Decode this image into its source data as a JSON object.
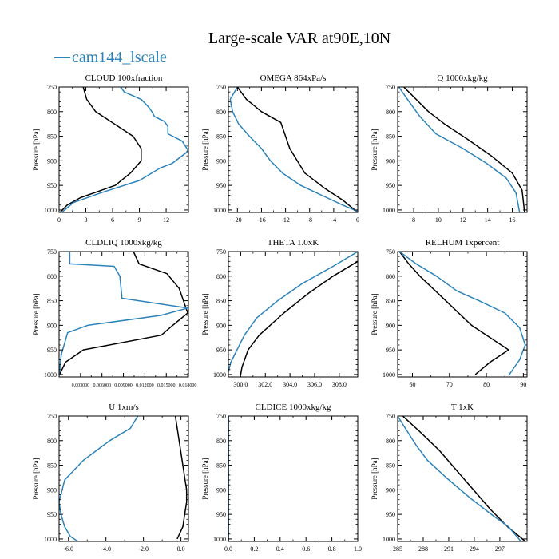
{
  "figure": {
    "title": "Large-scale VAR at90E,10N",
    "legend": {
      "label": "cam144_lscale",
      "color": "#2b83ba",
      "marker": "—"
    },
    "colors": {
      "black": "#000000",
      "blue": "#2b83ba"
    }
  },
  "chart_data": [
    {
      "type": "line",
      "title": "CLOUD 100xfraction",
      "ylabel": "Pressure [hPa]",
      "xlim": [
        0,
        14.5
      ],
      "ylim": [
        1005,
        750
      ],
      "xticks": [
        0,
        3,
        6,
        9,
        12
      ],
      "xtick_labels": [
        "0",
        "3",
        "6",
        "9",
        "12"
      ],
      "yticks": [
        750,
        800,
        850,
        900,
        950,
        1000
      ],
      "ytick_labels": [
        "750",
        "800",
        "850",
        "900",
        "950",
        "1000"
      ],
      "series": [
        {
          "name": "black",
          "color": "#000000",
          "x": [
            2.7,
            3.1,
            4.1,
            8.3,
            9.2,
            9.2,
            8.0,
            6.3,
            2.4,
            0.9,
            0.1
          ],
          "y": [
            750,
            775,
            800,
            850,
            875,
            900,
            925,
            950,
            975,
            990,
            1005
          ]
        },
        {
          "name": "cam144_lscale",
          "color": "#2b83ba",
          "x": [
            6.9,
            7.3,
            9.2,
            10.0,
            10.4,
            10.7,
            11.8,
            12.2,
            12.2,
            13.8,
            14.5,
            12.7,
            11.3,
            9.0,
            4.7,
            1.6,
            0.3
          ],
          "y": [
            750,
            760,
            775,
            790,
            800,
            810,
            820,
            830,
            845,
            860,
            880,
            905,
            915,
            940,
            965,
            985,
            1005
          ]
        }
      ]
    },
    {
      "type": "line",
      "title": "OMEGA 864xPa/s",
      "ylabel": "Pressure [hPa]",
      "xlim": [
        -21.5,
        0
      ],
      "ylim": [
        1005,
        750
      ],
      "xticks": [
        -20,
        -16,
        -12,
        -8,
        -4,
        0
      ],
      "xtick_labels": [
        "-20",
        "-16",
        "-12",
        "-8",
        "-4",
        "0"
      ],
      "yticks": [
        750,
        800,
        850,
        900,
        950,
        1000
      ],
      "ytick_labels": [
        "750",
        "800",
        "850",
        "900",
        "950",
        "1000"
      ],
      "series": [
        {
          "name": "black",
          "color": "#000000",
          "x": [
            -20.0,
            -18.5,
            -16.0,
            -12.8,
            -12.0,
            -11.3,
            -8.8,
            -5.6,
            -2.5,
            0.0
          ],
          "y": [
            750,
            775,
            800,
            822,
            850,
            875,
            925,
            955,
            980,
            1005
          ]
        },
        {
          "name": "cam144_lscale",
          "color": "#2b83ba",
          "x": [
            -20.0,
            -21.2,
            -20.8,
            -19.8,
            -18.0,
            -16.0,
            -14.5,
            -12.5,
            -9.5,
            -6.0,
            -2.5,
            0.0
          ],
          "y": [
            750,
            775,
            800,
            825,
            850,
            875,
            900,
            925,
            950,
            970,
            990,
            1003
          ]
        }
      ]
    },
    {
      "type": "line",
      "title": "Q 1000xkg/kg",
      "ylabel": "Pressure [hPa]",
      "xlim": [
        6.7,
        17.2
      ],
      "ylim": [
        1005,
        750
      ],
      "xticks": [
        8,
        10,
        12,
        14,
        16
      ],
      "xtick_labels": [
        "8",
        "10",
        "12",
        "14",
        "16"
      ],
      "yticks": [
        750,
        800,
        850,
        900,
        950,
        1000
      ],
      "ytick_labels": [
        "750",
        "800",
        "850",
        "900",
        "950",
        "1000"
      ],
      "series": [
        {
          "name": "black",
          "color": "#000000",
          "x": [
            7.2,
            8.2,
            9.2,
            10.5,
            12.3,
            14.3,
            16.0,
            16.8,
            17.0
          ],
          "y": [
            750,
            775,
            800,
            825,
            855,
            890,
            925,
            960,
            1005
          ]
        },
        {
          "name": "cam144_lscale",
          "color": "#2b83ba",
          "x": [
            6.8,
            7.5,
            8.5,
            9.8,
            12.0,
            13.9,
            15.5,
            16.3,
            16.6
          ],
          "y": [
            750,
            775,
            810,
            845,
            875,
            905,
            935,
            965,
            1005
          ]
        }
      ]
    },
    {
      "type": "line",
      "title": "CLDLIQ 1000xkg/kg",
      "ylabel": "Pressure [hPa]",
      "xlim": [
        0,
        0.0181
      ],
      "ylim": [
        1005,
        750
      ],
      "xticks": [
        0.003,
        0.006,
        0.009,
        0.012,
        0.015,
        0.018
      ],
      "xtick_labels": [
        "0.003000",
        "0.006000",
        "0.009000",
        "0.012000",
        "0.015000",
        "0.018000"
      ],
      "yticks": [
        750,
        800,
        850,
        900,
        950,
        1000
      ],
      "ytick_labels": [
        "750",
        "800",
        "850",
        "900",
        "950",
        "1000"
      ],
      "series": [
        {
          "name": "black",
          "color": "#000000",
          "x": [
            0.0104,
            0.0112,
            0.0151,
            0.0168,
            0.018,
            0.0159,
            0.0143,
            0.0034,
            0.0009,
            0.0
          ],
          "y": [
            750,
            775,
            795,
            825,
            875,
            900,
            920,
            950,
            975,
            1002
          ]
        },
        {
          "name": "cam144_lscale",
          "color": "#2b83ba",
          "x": [
            0.0015,
            0.0015,
            0.0077,
            0.0085,
            0.0088,
            0.018,
            0.0142,
            0.004,
            0.0012,
            0.0003,
            0.0
          ],
          "y": [
            750,
            775,
            780,
            800,
            845,
            865,
            880,
            900,
            915,
            960,
            1002
          ]
        }
      ]
    },
    {
      "type": "line",
      "title": "THETA 1.0xK",
      "ylabel": "Pressure [hPa]",
      "xlim": [
        299.0,
        309.5
      ],
      "ylim": [
        1005,
        750
      ],
      "xticks": [
        300,
        302,
        304,
        306,
        308
      ],
      "xtick_labels": [
        "300.0",
        "302.0",
        "304.0",
        "306.0",
        "308.0"
      ],
      "yticks": [
        750,
        800,
        850,
        900,
        950,
        1000
      ],
      "ytick_labels": [
        "750",
        "800",
        "850",
        "900",
        "950",
        "1000"
      ],
      "series": [
        {
          "name": "black",
          "color": "#000000",
          "x": [
            309.5,
            307.5,
            305.5,
            303.5,
            301.5,
            300.6,
            300.1,
            300.0
          ],
          "y": [
            770,
            800,
            835,
            875,
            920,
            950,
            985,
            1000
          ]
        },
        {
          "name": "cam144_lscale",
          "color": "#2b83ba",
          "x": [
            309.5,
            307.5,
            305.0,
            303.0,
            301.3,
            300.3,
            299.7,
            299.2,
            299.0
          ],
          "y": [
            750,
            780,
            815,
            850,
            885,
            920,
            950,
            975,
            995
          ]
        }
      ]
    },
    {
      "type": "line",
      "title": "RELHUM 1xpercent",
      "ylabel": "Pressure [hPa]",
      "xlim": [
        56,
        91
      ],
      "ylim": [
        1005,
        750
      ],
      "xticks": [
        60,
        70,
        80,
        90
      ],
      "xtick_labels": [
        "60",
        "70",
        "80",
        "90"
      ],
      "yticks": [
        750,
        800,
        850,
        900,
        950,
        1000
      ],
      "ytick_labels": [
        "750",
        "800",
        "850",
        "900",
        "950",
        "1000"
      ],
      "series": [
        {
          "name": "black",
          "color": "#000000",
          "x": [
            56.5,
            59.0,
            62.0,
            69.0,
            76.0,
            81.0,
            86.0,
            81.0,
            77.0
          ],
          "y": [
            750,
            775,
            800,
            850,
            900,
            925,
            950,
            975,
            1000
          ]
        },
        {
          "name": "cam144_lscale",
          "color": "#2b83ba",
          "x": [
            56.5,
            61.0,
            66.5,
            72.0,
            78.0,
            85.0,
            89.0,
            90.5,
            89.0,
            86.0
          ],
          "y": [
            750,
            775,
            800,
            830,
            850,
            875,
            905,
            940,
            970,
            1002
          ]
        }
      ]
    },
    {
      "type": "line",
      "title": "U 1xm/s",
      "ylabel": "Pressure [hPa]",
      "xlim": [
        -6.5,
        0.4
      ],
      "ylim": [
        1005,
        750
      ],
      "xticks": [
        -6.0,
        -4.0,
        -2.0,
        0.0
      ],
      "xtick_labels": [
        "-6.0",
        "-4.0",
        "-2.0",
        "0.0"
      ],
      "yticks": [
        750,
        800,
        850,
        900,
        950,
        1000
      ],
      "ytick_labels": [
        "750",
        "800",
        "850",
        "900",
        "950",
        "1000"
      ],
      "series": [
        {
          "name": "black",
          "color": "#000000",
          "x": [
            -0.3,
            -0.1,
            0.1,
            0.2,
            0.3,
            0.3,
            0.2,
            0.1,
            -0.2
          ],
          "y": [
            750,
            800,
            850,
            875,
            900,
            925,
            950,
            975,
            1000
          ]
        },
        {
          "name": "cam144_lscale",
          "color": "#2b83ba",
          "x": [
            -2.3,
            -2.7,
            -3.8,
            -5.2,
            -6.2,
            -6.5,
            -6.4,
            -6.2,
            -5.9,
            -5.5
          ],
          "y": [
            750,
            775,
            800,
            840,
            880,
            925,
            950,
            975,
            995,
            1005
          ]
        }
      ]
    },
    {
      "type": "line",
      "title": "CLDICE 1000xkg/kg",
      "ylabel": "Pressure [hPa]",
      "xlim": [
        0,
        1
      ],
      "ylim": [
        1005,
        750
      ],
      "xticks": [
        0.0,
        0.2,
        0.4,
        0.6,
        0.8,
        1.0
      ],
      "xtick_labels": [
        "0.0",
        "0.2",
        "0.4",
        "0.6",
        "0.8",
        "1.0"
      ],
      "yticks": [
        750,
        800,
        850,
        900,
        950,
        1000
      ],
      "ytick_labels": [
        "750",
        "800",
        "850",
        "900",
        "950",
        "1000"
      ],
      "series": [
        {
          "name": "black",
          "color": "#000000",
          "x": [
            0.0,
            0.0
          ],
          "y": [
            750,
            1005
          ]
        },
        {
          "name": "cam144_lscale",
          "color": "#2b83ba",
          "x": [
            0.0,
            0.0
          ],
          "y": [
            750,
            1005
          ]
        }
      ]
    },
    {
      "type": "line",
      "title": "T 1xK",
      "ylabel": "Pressure [hPa]",
      "xlim": [
        285,
        300.2
      ],
      "ylim": [
        1005,
        750
      ],
      "xticks": [
        285,
        288,
        291,
        294,
        297
      ],
      "xtick_labels": [
        "285",
        "288",
        "291",
        "294",
        "297"
      ],
      "yticks": [
        750,
        800,
        850,
        900,
        950,
        1000
      ],
      "ytick_labels": [
        "750",
        "800",
        "850",
        "900",
        "950",
        "1000"
      ],
      "series": [
        {
          "name": "black",
          "color": "#000000",
          "x": [
            285.6,
            287.8,
            289.9,
            291.9,
            293.9,
            295.9,
            297.9,
            300.0
          ],
          "y": [
            750,
            785,
            820,
            860,
            900,
            940,
            975,
            1005
          ]
        },
        {
          "name": "cam144_lscale",
          "color": "#2b83ba",
          "x": [
            285.0,
            285.9,
            287.2,
            288.5,
            290.7,
            293.4,
            296.0,
            298.0,
            299.5
          ],
          "y": [
            750,
            775,
            810,
            840,
            875,
            915,
            950,
            975,
            1005
          ]
        }
      ]
    }
  ]
}
